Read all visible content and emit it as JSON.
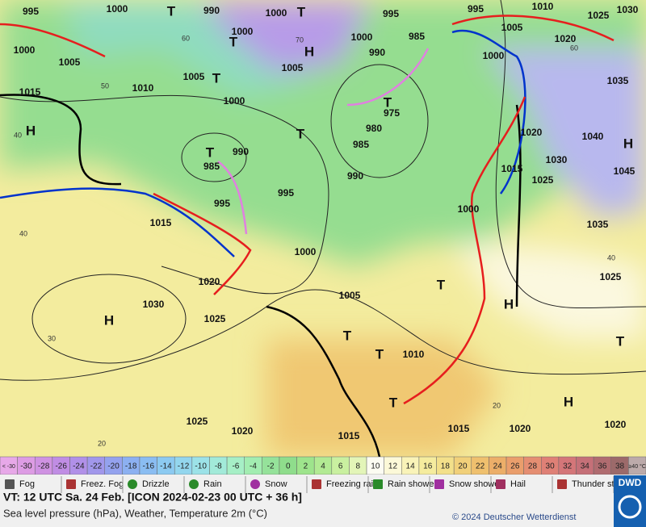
{
  "isobar_labels": [
    "995",
    "1000",
    "990",
    "1000",
    "995",
    "995",
    "1010",
    "1025",
    "1030",
    "1000",
    "1000",
    "985",
    "1005",
    "1020",
    "1000",
    "1005",
    "990",
    "1000",
    "1005",
    "1005",
    "1010",
    "1035",
    "1015",
    "1000",
    "975",
    "980",
    "1020",
    "1040",
    "990",
    "985",
    "985",
    "1030",
    "1015",
    "1045",
    "990",
    "1025",
    "995",
    "995",
    "1000",
    "1015",
    "1035",
    "1000",
    "1025",
    "1020",
    "1005",
    "1030",
    "1025",
    "1010",
    "1025",
    "1015",
    "1020",
    "1020",
    "1020",
    "1015"
  ],
  "pressure_centers": [
    "H",
    "T",
    "T",
    "T",
    "H",
    "T",
    "T",
    "T",
    "T",
    "H",
    "T",
    "H",
    "H",
    "T",
    "T",
    "T",
    "H",
    "T"
  ],
  "temperature_labels": [
    "60",
    "70",
    "50",
    "40",
    "40",
    "30",
    "20",
    "60",
    "40",
    "20"
  ],
  "color_scale": [
    {
      "label": "< -30",
      "color": "#e7a8e8"
    },
    {
      "label": "-30",
      "color": "#dd9ce4"
    },
    {
      "label": "-28",
      "color": "#cf92e2"
    },
    {
      "label": "-26",
      "color": "#c08de4"
    },
    {
      "label": "-24",
      "color": "#b190e8"
    },
    {
      "label": "-22",
      "color": "#a197eb"
    },
    {
      "label": "-20",
      "color": "#94a2ee"
    },
    {
      "label": "-18",
      "color": "#8cb0f1"
    },
    {
      "label": "-16",
      "color": "#8abdf2"
    },
    {
      "label": "-14",
      "color": "#8ccaf1"
    },
    {
      "label": "-12",
      "color": "#93d6ee"
    },
    {
      "label": "-10",
      "color": "#9ce2e8"
    },
    {
      "label": "-8",
      "color": "#a2ead9"
    },
    {
      "label": "-6",
      "color": "#a6efc6"
    },
    {
      "label": "-4",
      "color": "#a2edb1"
    },
    {
      "label": "-2",
      "color": "#95e29a"
    },
    {
      "label": "0",
      "color": "#8fdd8c"
    },
    {
      "label": "2",
      "color": "#9ee48c"
    },
    {
      "label": "4",
      "color": "#b2ea93"
    },
    {
      "label": "6",
      "color": "#c9f0a0"
    },
    {
      "label": "8",
      "color": "#e3f5b8"
    },
    {
      "label": "10",
      "color": "#fcfcf2"
    },
    {
      "label": "12",
      "color": "#fcf9d8"
    },
    {
      "label": "14",
      "color": "#f9f3b8"
    },
    {
      "label": "16",
      "color": "#f5ec9e"
    },
    {
      "label": "18",
      "color": "#f3e08a"
    },
    {
      "label": "20",
      "color": "#f1d07a"
    },
    {
      "label": "22",
      "color": "#efc06e"
    },
    {
      "label": "24",
      "color": "#ecae69"
    },
    {
      "label": "26",
      "color": "#ea9e6c"
    },
    {
      "label": "28",
      "color": "#e58e72"
    },
    {
      "label": "30",
      "color": "#df8076"
    },
    {
      "label": "32",
      "color": "#d47679"
    },
    {
      "label": "34",
      "color": "#c57078"
    },
    {
      "label": "36",
      "color": "#b06c70"
    },
    {
      "label": "38",
      "color": "#9c6a6a"
    },
    {
      "label": "≥40 °C",
      "color": "#bcaaaa"
    }
  ],
  "legend": [
    "Fog",
    "Freez. Fog",
    "Drizzle",
    "Rain",
    "Snow",
    "Freezing rain",
    "Rain shower",
    "Snow shower",
    "Hail",
    "Thunder storm"
  ],
  "footer": {
    "valid_time": "VT: 12 UTC Sa.  24 Feb. [ICON 2024-02-23  00 UTC + 36 h]",
    "description": "Sea level pressure (hPa), Weather, Temperature 2m (°C)",
    "copyright": "© 2024 Deutscher Wetterdienst",
    "logo": "DWD"
  }
}
